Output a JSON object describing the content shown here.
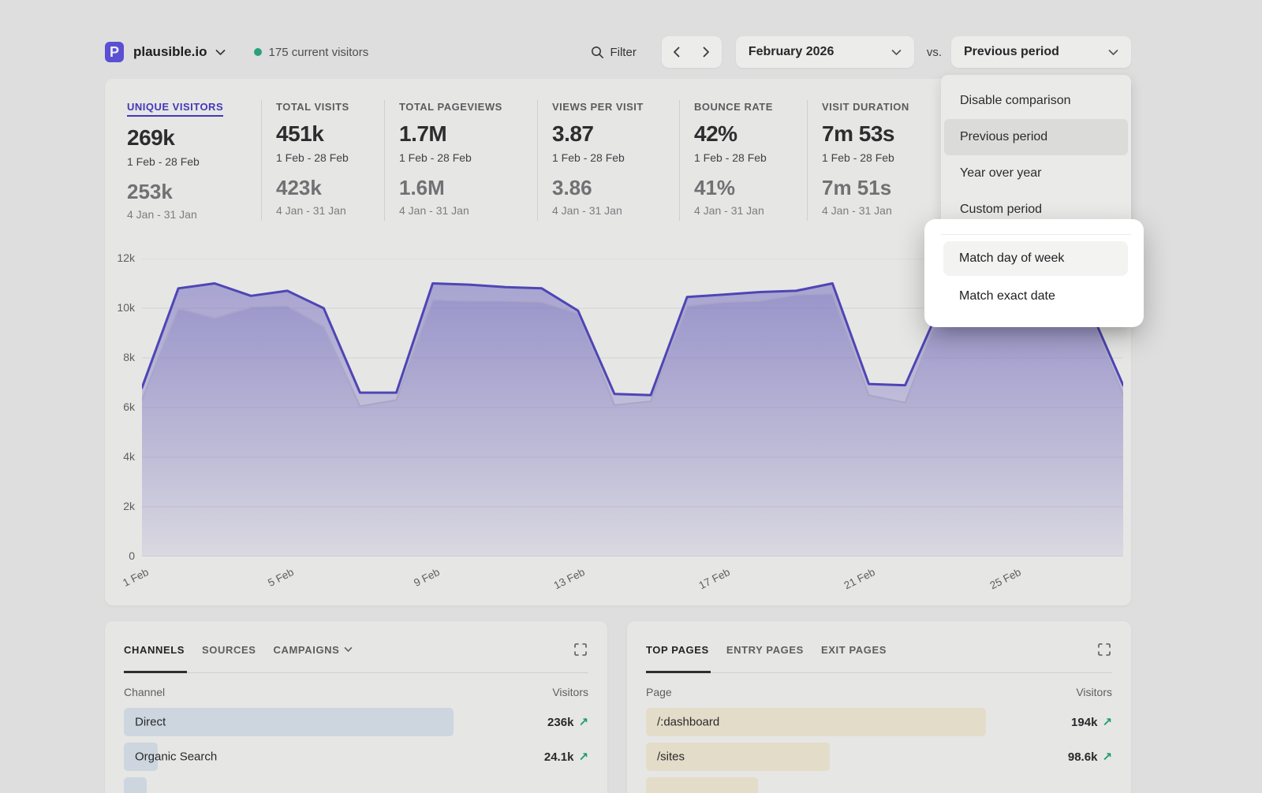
{
  "header": {
    "logo_letter": "P",
    "site": "plausible.io",
    "current_visitors": "175 current visitors",
    "filter_label": "Filter",
    "date_range": "February 2026",
    "vs_label": "vs.",
    "comparison": "Previous period"
  },
  "comparison_menu": {
    "items": [
      "Disable comparison",
      "Previous period",
      "Year over year",
      "Custom period"
    ],
    "selected_item": "Previous period",
    "match_options": [
      "Match day of week",
      "Match exact date"
    ],
    "highlighted_option": "Match day of week"
  },
  "stats": [
    {
      "label": "UNIQUE VISITORS",
      "value": "269k",
      "period": "1 Feb - 28 Feb",
      "prev_value": "253k",
      "prev_period": "4 Jan - 31 Jan"
    },
    {
      "label": "TOTAL VISITS",
      "value": "451k",
      "period": "1 Feb - 28 Feb",
      "prev_value": "423k",
      "prev_period": "4 Jan - 31 Jan"
    },
    {
      "label": "TOTAL PAGEVIEWS",
      "value": "1.7M",
      "period": "1 Feb - 28 Feb",
      "prev_value": "1.6M",
      "prev_period": "4 Jan - 31 Jan"
    },
    {
      "label": "VIEWS PER VISIT",
      "value": "3.87",
      "period": "1 Feb - 28 Feb",
      "prev_value": "3.86",
      "prev_period": "4 Jan - 31 Jan"
    },
    {
      "label": "BOUNCE RATE",
      "value": "42%",
      "period": "1 Feb - 28 Feb",
      "prev_value": "41%",
      "prev_period": "4 Jan - 31 Jan"
    },
    {
      "label": "VISIT DURATION",
      "value": "7m 53s",
      "period": "1 Feb - 28 Feb",
      "prev_value": "7m 51s",
      "prev_period": "4 Jan - 31 Jan"
    }
  ],
  "chart_data": {
    "type": "area",
    "x_days": [
      1,
      2,
      3,
      4,
      5,
      6,
      7,
      8,
      9,
      10,
      11,
      12,
      13,
      14,
      15,
      16,
      17,
      18,
      19,
      20,
      21,
      22,
      23,
      24,
      25,
      26,
      27,
      28
    ],
    "series": [
      {
        "name": "1 Feb - 28 Feb",
        "values": [
          6800,
          10800,
          11000,
          10500,
          10700,
          10000,
          6600,
          6600,
          11000,
          10950,
          10850,
          10800,
          9900,
          6550,
          6500,
          10450,
          10550,
          10650,
          10700,
          11000,
          6950,
          6900,
          10200,
          10250,
          10300,
          10300,
          10250,
          6900
        ]
      },
      {
        "name": "4 Jan - 31 Jan",
        "values": [
          6300,
          10000,
          9600,
          10050,
          10100,
          9250,
          6050,
          6300,
          10350,
          10300,
          10300,
          10250,
          9800,
          6100,
          6250,
          10100,
          10250,
          10300,
          10550,
          10600,
          6500,
          6200,
          10000,
          10100,
          10150,
          10150,
          10100,
          6500
        ]
      }
    ],
    "ylim": [
      0,
      12000
    ],
    "yticks": [
      {
        "value": 0,
        "label": "0"
      },
      {
        "value": 2000,
        "label": "2k"
      },
      {
        "value": 4000,
        "label": "4k"
      },
      {
        "value": 6000,
        "label": "6k"
      },
      {
        "value": 8000,
        "label": "8k"
      },
      {
        "value": 10000,
        "label": "10k"
      },
      {
        "value": 12000,
        "label": "12k"
      }
    ],
    "xticks": [
      {
        "index": 0,
        "label": "1 Feb"
      },
      {
        "index": 4,
        "label": "5 Feb"
      },
      {
        "index": 8,
        "label": "9 Feb"
      },
      {
        "index": 12,
        "label": "13 Feb"
      },
      {
        "index": 16,
        "label": "17 Feb"
      },
      {
        "index": 20,
        "label": "21 Feb"
      },
      {
        "index": 24,
        "label": "25 Feb"
      }
    ],
    "grid": true,
    "legend": "none"
  },
  "channels_card": {
    "tabs": [
      "CHANNELS",
      "SOURCES",
      "CAMPAIGNS"
    ],
    "active_tab": "CHANNELS",
    "col_label": "Channel",
    "col_value": "Visitors",
    "rows": [
      {
        "label": "Direct",
        "value": "236k",
        "bar_pct": 71
      },
      {
        "label": "Organic Search",
        "value": "24.1k",
        "bar_pct": 7.3
      },
      {
        "label": "",
        "value": "",
        "bar_pct": 5
      }
    ]
  },
  "pages_card": {
    "tabs": [
      "TOP PAGES",
      "ENTRY PAGES",
      "EXIT PAGES"
    ],
    "active_tab": "TOP PAGES",
    "col_label": "Page",
    "col_value": "Visitors",
    "rows": [
      {
        "label": "/:dashboard",
        "value": "194k",
        "bar_pct": 73
      },
      {
        "label": "/sites",
        "value": "98.6k",
        "bar_pct": 39.5
      },
      {
        "label": "",
        "value": "",
        "bar_pct": 24
      }
    ]
  },
  "ui": {
    "trend_arrow": "↗"
  },
  "colors": {
    "accent_indigo": "#4c44b0",
    "prev_line": "#a9a5c9",
    "live_dot_green": "#2aa07c",
    "positive_green": "#169a72",
    "channel_bar": "#cdd6de",
    "page_bar": "#e3dcc8"
  }
}
